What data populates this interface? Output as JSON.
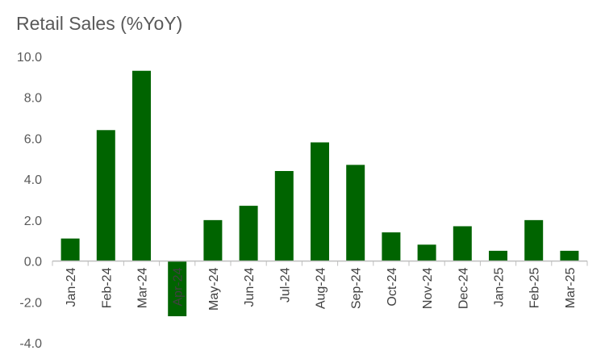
{
  "chart_data": {
    "type": "bar",
    "title": "Retail Sales (%YoY)",
    "xlabel": "",
    "ylabel": "",
    "categories": [
      "Jan-24",
      "Feb-24",
      "Mar-24",
      "Apr-24",
      "May-24",
      "Jun-24",
      "Jul-24",
      "Aug-24",
      "Sep-24",
      "Oct-24",
      "Nov-24",
      "Dec-24",
      "Jan-25",
      "Feb-25",
      "Mar-25"
    ],
    "values": [
      1.1,
      6.4,
      9.3,
      -2.7,
      2.0,
      2.7,
      4.4,
      5.8,
      4.7,
      1.4,
      0.8,
      1.7,
      0.5,
      2.0,
      0.5
    ],
    "ylim": [
      -4.0,
      10.0
    ],
    "yticks": [
      -4.0,
      -2.0,
      0.0,
      2.0,
      4.0,
      6.0,
      8.0,
      10.0
    ],
    "ytick_labels": [
      "-4.0",
      "-2.0",
      "0.0",
      "2.0",
      "4.0",
      "6.0",
      "8.0",
      "10.0"
    ],
    "bar_color": "#006400",
    "grid": false,
    "legend": "none"
  }
}
